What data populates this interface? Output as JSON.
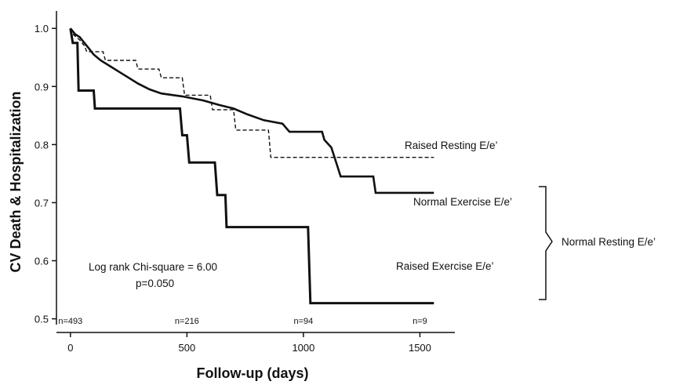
{
  "chart_data": {
    "type": "line",
    "title": "",
    "xlabel": "Follow-up (days)",
    "ylabel": "CV Death & Hospitalization",
    "xlim": [
      -60,
      1650
    ],
    "ylim": [
      0.49,
      1.03
    ],
    "xticks": [
      0,
      500,
      1000,
      1500
    ],
    "yticks": [
      0.5,
      0.6,
      0.7,
      0.8,
      0.9,
      1.0
    ],
    "ytick_labels": [
      "0.5",
      "0.6",
      "0.7",
      "0.8",
      "0.9",
      "1.0"
    ],
    "grid": false,
    "series": [
      {
        "name": "Raised Resting E/e’",
        "style": "dashed",
        "color": "#111111",
        "points": [
          [
            0,
            1.0
          ],
          [
            10,
            0.99
          ],
          [
            25,
            0.985
          ],
          [
            40,
            0.98
          ],
          [
            60,
            0.97
          ],
          [
            70,
            0.96
          ],
          [
            140,
            0.96
          ],
          [
            150,
            0.945
          ],
          [
            280,
            0.945
          ],
          [
            290,
            0.93
          ],
          [
            380,
            0.93
          ],
          [
            390,
            0.915
          ],
          [
            480,
            0.915
          ],
          [
            490,
            0.885
          ],
          [
            600,
            0.885
          ],
          [
            610,
            0.86
          ],
          [
            700,
            0.86
          ],
          [
            710,
            0.825
          ],
          [
            850,
            0.825
          ],
          [
            860,
            0.778
          ],
          [
            1560,
            0.778
          ]
        ]
      },
      {
        "name": "Normal Exercise E/e’",
        "style": "solid",
        "color": "#111111",
        "points": [
          [
            0,
            1.0
          ],
          [
            20,
            0.99
          ],
          [
            40,
            0.985
          ],
          [
            60,
            0.975
          ],
          [
            80,
            0.965
          ],
          [
            100,
            0.955
          ],
          [
            130,
            0.945
          ],
          [
            170,
            0.935
          ],
          [
            210,
            0.925
          ],
          [
            250,
            0.915
          ],
          [
            290,
            0.905
          ],
          [
            340,
            0.895
          ],
          [
            390,
            0.888
          ],
          [
            480,
            0.883
          ],
          [
            570,
            0.876
          ],
          [
            640,
            0.868
          ],
          [
            700,
            0.862
          ],
          [
            760,
            0.852
          ],
          [
            830,
            0.842
          ],
          [
            910,
            0.836
          ],
          [
            940,
            0.822
          ],
          [
            1080,
            0.822
          ],
          [
            1090,
            0.808
          ],
          [
            1120,
            0.795
          ],
          [
            1140,
            0.77
          ],
          [
            1160,
            0.745
          ],
          [
            1300,
            0.745
          ],
          [
            1310,
            0.717
          ],
          [
            1560,
            0.717
          ]
        ]
      },
      {
        "name": "Raised Exercise E/e’",
        "style": "solid-thick",
        "color": "#111111",
        "points": [
          [
            0,
            1.0
          ],
          [
            10,
            0.975
          ],
          [
            30,
            0.975
          ],
          [
            35,
            0.893
          ],
          [
            100,
            0.893
          ],
          [
            105,
            0.862
          ],
          [
            470,
            0.862
          ],
          [
            480,
            0.816
          ],
          [
            500,
            0.816
          ],
          [
            510,
            0.769
          ],
          [
            620,
            0.769
          ],
          [
            630,
            0.713
          ],
          [
            665,
            0.713
          ],
          [
            670,
            0.658
          ],
          [
            1020,
            0.658
          ],
          [
            1030,
            0.527
          ],
          [
            1560,
            0.527
          ]
        ]
      }
    ],
    "annotations": {
      "bracket_label": "Normal Resting E/e’",
      "stat_line1": "Log rank Chi-square = 6.00",
      "stat_line2": "p=0.050"
    },
    "numbers_at_risk": [
      {
        "x": 0,
        "label": "n=493"
      },
      {
        "x": 500,
        "label": "n=216"
      },
      {
        "x": 1000,
        "label": "n=94"
      },
      {
        "x": 1500,
        "label": "n=9"
      }
    ]
  }
}
